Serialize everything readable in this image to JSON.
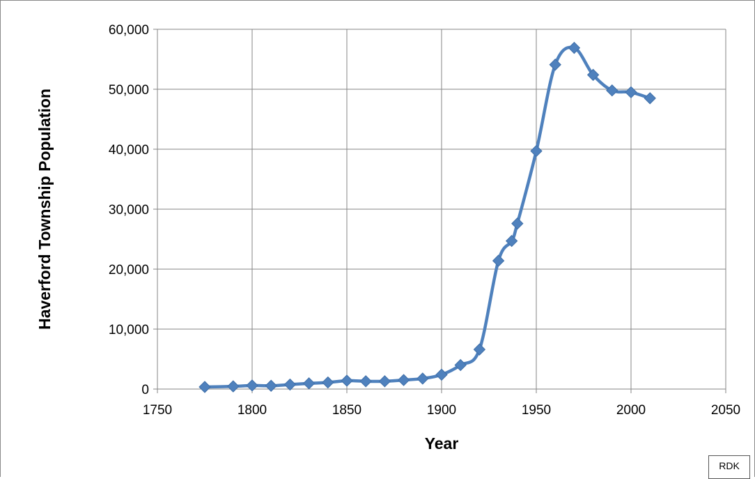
{
  "chart_data": {
    "type": "line",
    "title": "",
    "xlabel": "Year",
    "ylabel": "Haverford Township Population",
    "xlim": [
      1750,
      2050
    ],
    "ylim": [
      0,
      60000
    ],
    "x_ticks": [
      1750,
      1800,
      1850,
      1900,
      1950,
      2000,
      2050
    ],
    "x_tick_labels": [
      "1750",
      "1800",
      "1850",
      "1900",
      "1950",
      "2000",
      "2050"
    ],
    "y_ticks": [
      0,
      10000,
      20000,
      30000,
      40000,
      50000,
      60000
    ],
    "y_tick_labels": [
      "0",
      "10,000",
      "20,000",
      "30,000",
      "40,000",
      "50,000",
      "60,000"
    ],
    "grid": true,
    "legend": "none",
    "series": [
      {
        "color": "#4f81bd",
        "marker": "diamond",
        "smooth": true,
        "points": [
          {
            "x": 1775,
            "y": 350
          },
          {
            "x": 1790,
            "y": 450
          },
          {
            "x": 1800,
            "y": 600
          },
          {
            "x": 1810,
            "y": 550
          },
          {
            "x": 1820,
            "y": 750
          },
          {
            "x": 1830,
            "y": 950
          },
          {
            "x": 1840,
            "y": 1100
          },
          {
            "x": 1850,
            "y": 1400
          },
          {
            "x": 1860,
            "y": 1300
          },
          {
            "x": 1870,
            "y": 1300
          },
          {
            "x": 1880,
            "y": 1500
          },
          {
            "x": 1890,
            "y": 1750
          },
          {
            "x": 1900,
            "y": 2400
          },
          {
            "x": 1910,
            "y": 4000
          },
          {
            "x": 1920,
            "y": 6600
          },
          {
            "x": 1930,
            "y": 21400
          },
          {
            "x": 1937,
            "y": 24700
          },
          {
            "x": 1940,
            "y": 27600
          },
          {
            "x": 1950,
            "y": 39700
          },
          {
            "x": 1960,
            "y": 54100
          },
          {
            "x": 1970,
            "y": 56900
          },
          {
            "x": 1980,
            "y": 52400
          },
          {
            "x": 1990,
            "y": 49800
          },
          {
            "x": 2000,
            "y": 49500
          },
          {
            "x": 2010,
            "y": 48500
          }
        ]
      }
    ]
  },
  "credit": "RDK"
}
